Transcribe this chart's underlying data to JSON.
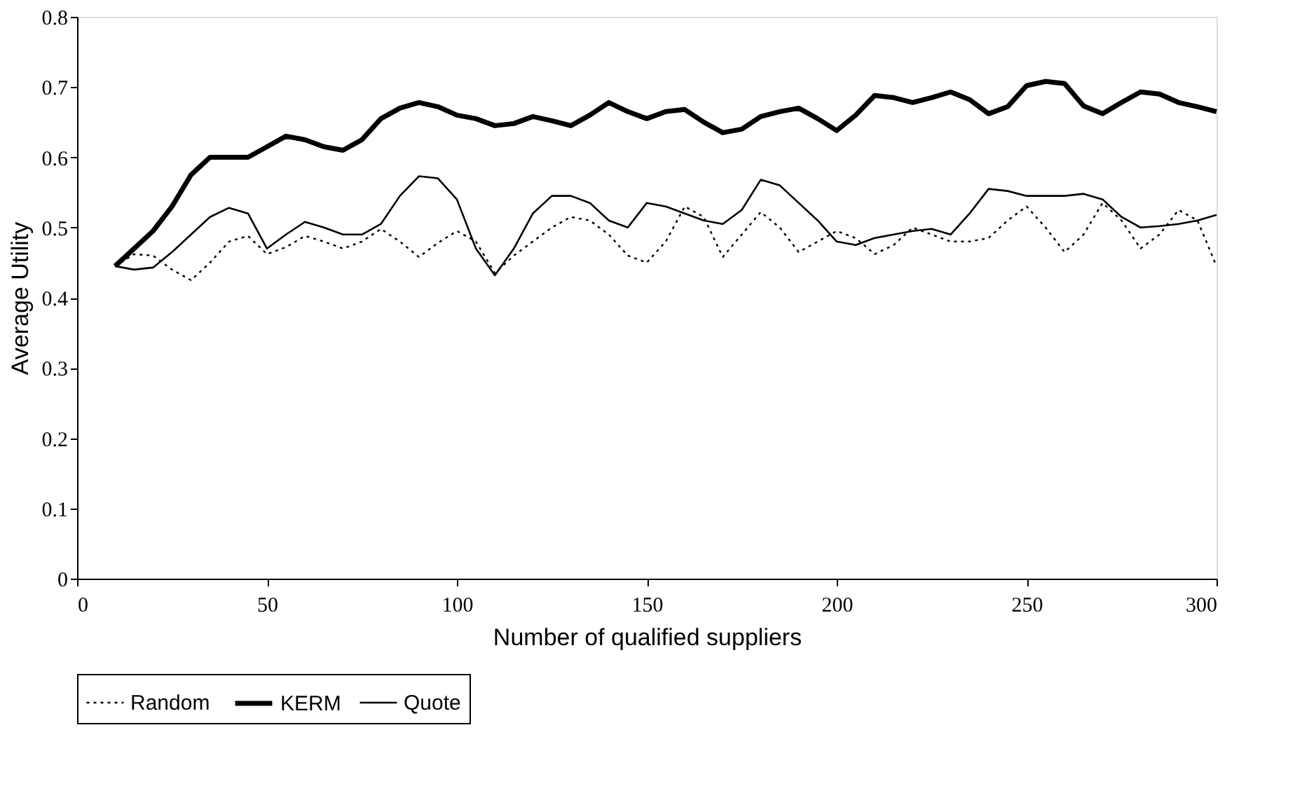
{
  "chart_data": {
    "type": "line",
    "xlabel": "Number of qualified suppliers",
    "ylabel": "Average Utility",
    "x": [
      10,
      15,
      20,
      25,
      30,
      35,
      40,
      45,
      50,
      55,
      60,
      65,
      70,
      75,
      80,
      85,
      90,
      95,
      100,
      105,
      110,
      115,
      120,
      125,
      130,
      135,
      140,
      145,
      150,
      155,
      160,
      165,
      170,
      175,
      180,
      185,
      190,
      195,
      200,
      205,
      210,
      215,
      220,
      225,
      230,
      235,
      240,
      245,
      250,
      255,
      260,
      265,
      270,
      275,
      280,
      285,
      290,
      295,
      300
    ],
    "series": [
      {
        "name": "Random",
        "color": "#000000",
        "line_style": "dotted",
        "values": [
          0.445,
          0.462,
          0.46,
          0.44,
          0.425,
          0.45,
          0.48,
          0.488,
          0.462,
          0.472,
          0.488,
          0.48,
          0.47,
          0.48,
          0.498,
          0.48,
          0.458,
          0.478,
          0.495,
          0.48,
          0.435,
          0.46,
          0.48,
          0.5,
          0.515,
          0.51,
          0.49,
          0.46,
          0.45,
          0.48,
          0.53,
          0.515,
          0.458,
          0.49,
          0.522,
          0.5,
          0.465,
          0.48,
          0.495,
          0.485,
          0.462,
          0.475,
          0.5,
          0.49,
          0.48,
          0.48,
          0.485,
          0.51,
          0.53,
          0.5,
          0.465,
          0.49,
          0.535,
          0.51,
          0.47,
          0.49,
          0.525,
          0.51,
          0.445
        ]
      },
      {
        "name": "KERM",
        "color": "#000000",
        "line_style": "solid",
        "values": [
          0.445,
          0.47,
          0.495,
          0.53,
          0.575,
          0.6,
          0.6,
          0.6,
          0.615,
          0.63,
          0.625,
          0.615,
          0.61,
          0.625,
          0.655,
          0.67,
          0.678,
          0.672,
          0.66,
          0.655,
          0.645,
          0.648,
          0.658,
          0.652,
          0.645,
          0.66,
          0.678,
          0.665,
          0.655,
          0.665,
          0.668,
          0.65,
          0.635,
          0.64,
          0.658,
          0.665,
          0.67,
          0.655,
          0.638,
          0.66,
          0.688,
          0.685,
          0.678,
          0.685,
          0.693,
          0.682,
          0.662,
          0.672,
          0.702,
          0.708,
          0.705,
          0.673,
          0.662,
          0.678,
          0.693,
          0.69,
          0.678,
          0.672,
          0.665
        ]
      },
      {
        "name": "Quote",
        "color": "#000000",
        "line_style": "solid",
        "values": [
          0.445,
          0.44,
          0.443,
          0.465,
          0.49,
          0.515,
          0.528,
          0.52,
          0.47,
          0.49,
          0.508,
          0.5,
          0.49,
          0.49,
          0.505,
          0.545,
          0.573,
          0.57,
          0.54,
          0.47,
          0.432,
          0.47,
          0.52,
          0.545,
          0.545,
          0.535,
          0.51,
          0.5,
          0.535,
          0.53,
          0.52,
          0.51,
          0.505,
          0.525,
          0.568,
          0.56,
          0.535,
          0.51,
          0.48,
          0.475,
          0.485,
          0.49,
          0.495,
          0.498,
          0.49,
          0.52,
          0.555,
          0.552,
          0.545,
          0.545,
          0.545,
          0.548,
          0.54,
          0.515,
          0.5,
          0.502,
          0.505,
          0.51,
          0.518
        ]
      }
    ],
    "xlim": [
      0,
      300
    ],
    "xticks": [
      0,
      50,
      100,
      150,
      200,
      250,
      300
    ],
    "ylim": [
      0,
      0.8
    ],
    "yticks": [
      {
        "value": 0,
        "label": "0"
      },
      {
        "value": 0.1,
        "label": "0.1"
      },
      {
        "value": 0.2,
        "label": "0.2"
      },
      {
        "value": 0.3,
        "label": "0.3"
      },
      {
        "value": 0.4,
        "label": "0.4"
      },
      {
        "value": 0.5,
        "label": "0.5"
      },
      {
        "value": 0.6,
        "label": "0.6"
      },
      {
        "value": 0.7,
        "label": "0.7"
      },
      {
        "value": 0.8,
        "label": "0.8"
      }
    ],
    "grid": false,
    "legend": "bottom",
    "marker": "none"
  }
}
